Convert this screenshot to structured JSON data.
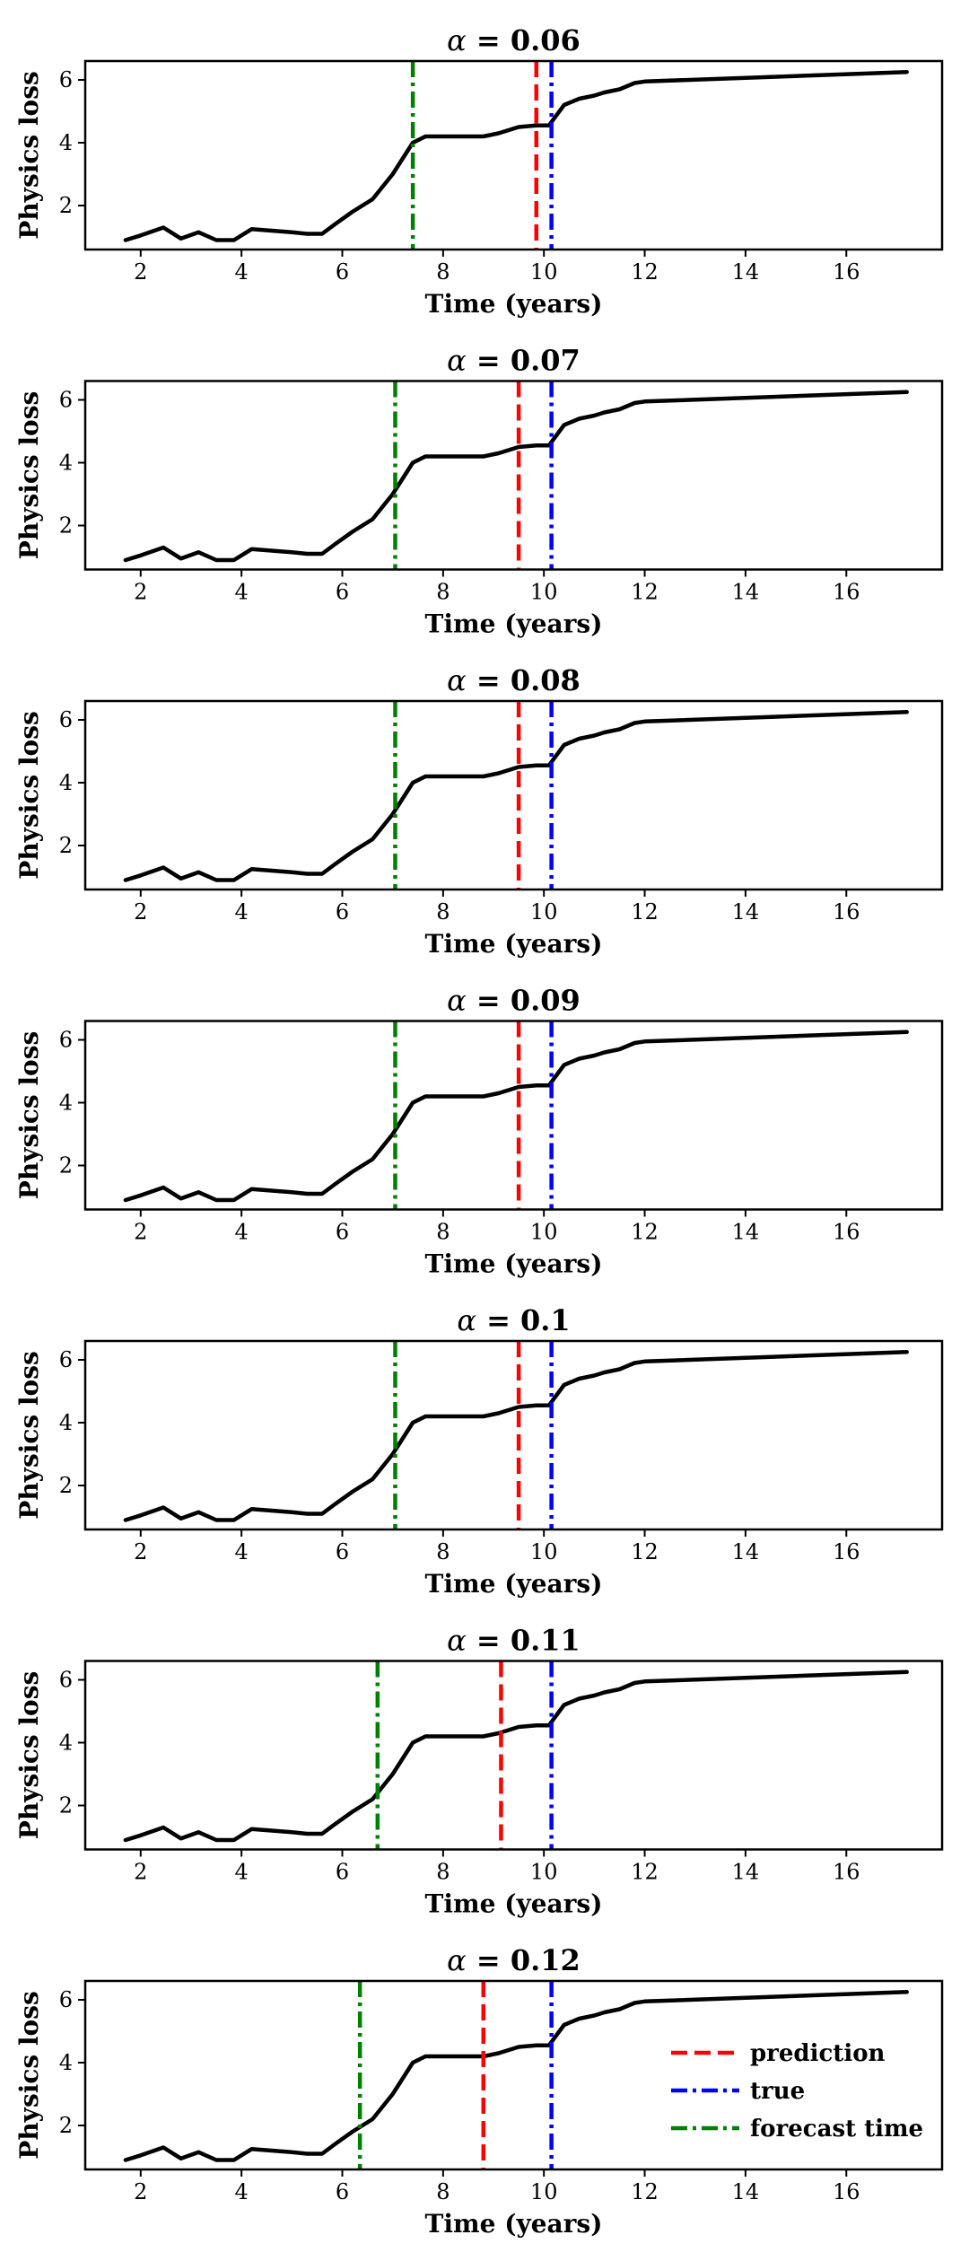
{
  "chart_data": [
    {
      "type": "line",
      "title_var": "α",
      "title_rest": " = 0.06",
      "xlabel": "Time (years)",
      "ylabel": "Physics loss",
      "xlim": [
        0.9,
        17.9
      ],
      "ylim": [
        0.6,
        6.6
      ],
      "xticks": [
        2,
        4,
        6,
        8,
        10,
        12,
        14,
        16
      ],
      "yticks": [
        2,
        4,
        6
      ],
      "x": [
        1.7,
        2.0,
        2.45,
        2.8,
        3.15,
        3.5,
        3.85,
        4.2,
        4.6,
        5.0,
        5.3,
        5.6,
        5.85,
        6.2,
        6.6,
        7.0,
        7.4,
        7.65,
        8.0,
        8.5,
        8.8,
        9.1,
        9.5,
        9.85,
        10.1,
        10.4,
        10.7,
        11.0,
        11.2,
        11.5,
        11.8,
        12.0,
        17.2
      ],
      "y": [
        0.9,
        1.05,
        1.3,
        0.95,
        1.15,
        0.9,
        0.9,
        1.25,
        1.2,
        1.15,
        1.1,
        1.1,
        1.4,
        1.8,
        2.2,
        3.0,
        4.0,
        4.2,
        4.2,
        4.2,
        4.2,
        4.3,
        4.5,
        4.55,
        4.55,
        5.2,
        5.4,
        5.5,
        5.6,
        5.7,
        5.9,
        5.95,
        6.25
      ],
      "forecast_time": 7.4,
      "prediction": 9.85,
      "true": 10.15
    },
    {
      "type": "line",
      "title_var": "α",
      "title_rest": " = 0.07",
      "xlabel": "Time (years)",
      "ylabel": "Physics loss",
      "xlim": [
        0.9,
        17.9
      ],
      "ylim": [
        0.6,
        6.6
      ],
      "xticks": [
        2,
        4,
        6,
        8,
        10,
        12,
        14,
        16
      ],
      "yticks": [
        2,
        4,
        6
      ],
      "x": [
        1.7,
        2.0,
        2.45,
        2.8,
        3.15,
        3.5,
        3.85,
        4.2,
        4.6,
        5.0,
        5.3,
        5.6,
        5.85,
        6.2,
        6.6,
        7.0,
        7.4,
        7.65,
        8.0,
        8.5,
        8.8,
        9.1,
        9.5,
        9.85,
        10.1,
        10.4,
        10.7,
        11.0,
        11.2,
        11.5,
        11.8,
        12.0,
        17.2
      ],
      "y": [
        0.9,
        1.05,
        1.3,
        0.95,
        1.15,
        0.9,
        0.9,
        1.25,
        1.2,
        1.15,
        1.1,
        1.1,
        1.4,
        1.8,
        2.2,
        3.0,
        4.0,
        4.2,
        4.2,
        4.2,
        4.2,
        4.3,
        4.5,
        4.55,
        4.55,
        5.2,
        5.4,
        5.5,
        5.6,
        5.7,
        5.9,
        5.95,
        6.25
      ],
      "forecast_time": 7.05,
      "prediction": 9.5,
      "true": 10.15
    },
    {
      "type": "line",
      "title_var": "α",
      "title_rest": " = 0.08",
      "xlabel": "Time (years)",
      "ylabel": "Physics loss",
      "xlim": [
        0.9,
        17.9
      ],
      "ylim": [
        0.6,
        6.6
      ],
      "xticks": [
        2,
        4,
        6,
        8,
        10,
        12,
        14,
        16
      ],
      "yticks": [
        2,
        4,
        6
      ],
      "x": [
        1.7,
        2.0,
        2.45,
        2.8,
        3.15,
        3.5,
        3.85,
        4.2,
        4.6,
        5.0,
        5.3,
        5.6,
        5.85,
        6.2,
        6.6,
        7.0,
        7.4,
        7.65,
        8.0,
        8.5,
        8.8,
        9.1,
        9.5,
        9.85,
        10.1,
        10.4,
        10.7,
        11.0,
        11.2,
        11.5,
        11.8,
        12.0,
        17.2
      ],
      "y": [
        0.9,
        1.05,
        1.3,
        0.95,
        1.15,
        0.9,
        0.9,
        1.25,
        1.2,
        1.15,
        1.1,
        1.1,
        1.4,
        1.8,
        2.2,
        3.0,
        4.0,
        4.2,
        4.2,
        4.2,
        4.2,
        4.3,
        4.5,
        4.55,
        4.55,
        5.2,
        5.4,
        5.5,
        5.6,
        5.7,
        5.9,
        5.95,
        6.25
      ],
      "forecast_time": 7.05,
      "prediction": 9.5,
      "true": 10.15
    },
    {
      "type": "line",
      "title_var": "α",
      "title_rest": " = 0.09",
      "xlabel": "Time (years)",
      "ylabel": "Physics loss",
      "xlim": [
        0.9,
        17.9
      ],
      "ylim": [
        0.6,
        6.6
      ],
      "xticks": [
        2,
        4,
        6,
        8,
        10,
        12,
        14,
        16
      ],
      "yticks": [
        2,
        4,
        6
      ],
      "x": [
        1.7,
        2.0,
        2.45,
        2.8,
        3.15,
        3.5,
        3.85,
        4.2,
        4.6,
        5.0,
        5.3,
        5.6,
        5.85,
        6.2,
        6.6,
        7.0,
        7.4,
        7.65,
        8.0,
        8.5,
        8.8,
        9.1,
        9.5,
        9.85,
        10.1,
        10.4,
        10.7,
        11.0,
        11.2,
        11.5,
        11.8,
        12.0,
        17.2
      ],
      "y": [
        0.9,
        1.05,
        1.3,
        0.95,
        1.15,
        0.9,
        0.9,
        1.25,
        1.2,
        1.15,
        1.1,
        1.1,
        1.4,
        1.8,
        2.2,
        3.0,
        4.0,
        4.2,
        4.2,
        4.2,
        4.2,
        4.3,
        4.5,
        4.55,
        4.55,
        5.2,
        5.4,
        5.5,
        5.6,
        5.7,
        5.9,
        5.95,
        6.25
      ],
      "forecast_time": 7.05,
      "prediction": 9.5,
      "true": 10.15
    },
    {
      "type": "line",
      "title_var": "α",
      "title_rest": " = 0.1",
      "xlabel": "Time (years)",
      "ylabel": "Physics loss",
      "xlim": [
        0.9,
        17.9
      ],
      "ylim": [
        0.6,
        6.6
      ],
      "xticks": [
        2,
        4,
        6,
        8,
        10,
        12,
        14,
        16
      ],
      "yticks": [
        2,
        4,
        6
      ],
      "x": [
        1.7,
        2.0,
        2.45,
        2.8,
        3.15,
        3.5,
        3.85,
        4.2,
        4.6,
        5.0,
        5.3,
        5.6,
        5.85,
        6.2,
        6.6,
        7.0,
        7.4,
        7.65,
        8.0,
        8.5,
        8.8,
        9.1,
        9.5,
        9.85,
        10.1,
        10.4,
        10.7,
        11.0,
        11.2,
        11.5,
        11.8,
        12.0,
        17.2
      ],
      "y": [
        0.9,
        1.05,
        1.3,
        0.95,
        1.15,
        0.9,
        0.9,
        1.25,
        1.2,
        1.15,
        1.1,
        1.1,
        1.4,
        1.8,
        2.2,
        3.0,
        4.0,
        4.2,
        4.2,
        4.2,
        4.2,
        4.3,
        4.5,
        4.55,
        4.55,
        5.2,
        5.4,
        5.5,
        5.6,
        5.7,
        5.9,
        5.95,
        6.25
      ],
      "forecast_time": 7.05,
      "prediction": 9.5,
      "true": 10.15
    },
    {
      "type": "line",
      "title_var": "α",
      "title_rest": " = 0.11",
      "xlabel": "Time (years)",
      "ylabel": "Physics loss",
      "xlim": [
        0.9,
        17.9
      ],
      "ylim": [
        0.6,
        6.6
      ],
      "xticks": [
        2,
        4,
        6,
        8,
        10,
        12,
        14,
        16
      ],
      "yticks": [
        2,
        4,
        6
      ],
      "x": [
        1.7,
        2.0,
        2.45,
        2.8,
        3.15,
        3.5,
        3.85,
        4.2,
        4.6,
        5.0,
        5.3,
        5.6,
        5.85,
        6.2,
        6.6,
        7.0,
        7.4,
        7.65,
        8.0,
        8.5,
        8.8,
        9.1,
        9.5,
        9.85,
        10.1,
        10.4,
        10.7,
        11.0,
        11.2,
        11.5,
        11.8,
        12.0,
        17.2
      ],
      "y": [
        0.9,
        1.05,
        1.3,
        0.95,
        1.15,
        0.9,
        0.9,
        1.25,
        1.2,
        1.15,
        1.1,
        1.1,
        1.4,
        1.8,
        2.2,
        3.0,
        4.0,
        4.2,
        4.2,
        4.2,
        4.2,
        4.3,
        4.5,
        4.55,
        4.55,
        5.2,
        5.4,
        5.5,
        5.6,
        5.7,
        5.9,
        5.95,
        6.25
      ],
      "forecast_time": 6.7,
      "prediction": 9.15,
      "true": 10.15
    },
    {
      "type": "line",
      "title_var": "α",
      "title_rest": " = 0.12",
      "xlabel": "Time (years)",
      "ylabel": "Physics loss",
      "xlim": [
        0.9,
        17.9
      ],
      "ylim": [
        0.6,
        6.6
      ],
      "xticks": [
        2,
        4,
        6,
        8,
        10,
        12,
        14,
        16
      ],
      "yticks": [
        2,
        4,
        6
      ],
      "x": [
        1.7,
        2.0,
        2.45,
        2.8,
        3.15,
        3.5,
        3.85,
        4.2,
        4.6,
        5.0,
        5.3,
        5.6,
        5.85,
        6.2,
        6.6,
        7.0,
        7.4,
        7.65,
        8.0,
        8.5,
        8.8,
        9.1,
        9.5,
        9.85,
        10.1,
        10.4,
        10.7,
        11.0,
        11.2,
        11.5,
        11.8,
        12.0,
        17.2
      ],
      "y": [
        0.9,
        1.05,
        1.3,
        0.95,
        1.15,
        0.9,
        0.9,
        1.25,
        1.2,
        1.15,
        1.1,
        1.1,
        1.4,
        1.8,
        2.2,
        3.0,
        4.0,
        4.2,
        4.2,
        4.2,
        4.2,
        4.3,
        4.5,
        4.55,
        4.55,
        5.2,
        5.4,
        5.5,
        5.6,
        5.7,
        5.9,
        5.95,
        6.25
      ],
      "forecast_time": 6.35,
      "prediction": 8.8,
      "true": 10.15,
      "legend": {
        "placement": "lower-right",
        "entries": [
          {
            "key": "prediction",
            "label": "prediction"
          },
          {
            "key": "true",
            "label": "true"
          },
          {
            "key": "forecast_time",
            "label": "forecast time"
          }
        ]
      }
    }
  ],
  "colors": {
    "curve": "#000000",
    "prediction": "#ff0000",
    "true": "#0000ff",
    "forecast_time": "#008000"
  }
}
